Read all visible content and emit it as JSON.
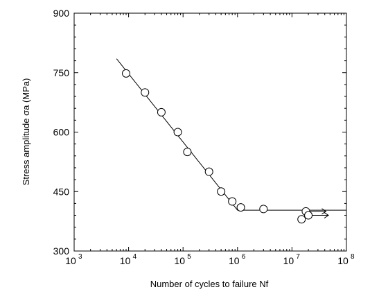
{
  "chart_data": {
    "type": "scatter",
    "title": "",
    "xlabel": "Number of cycles to failure  Nf",
    "ylabel": "Stress amplitude  σa (MPa)",
    "x_scale": "log",
    "xlim": [
      1000,
      100000000
    ],
    "ylim": [
      300,
      900
    ],
    "x_ticks": [
      {
        "value": 1000,
        "base": "10",
        "exp": "3"
      },
      {
        "value": 10000,
        "base": "10",
        "exp": "4"
      },
      {
        "value": 100000,
        "base": "10",
        "exp": "5"
      },
      {
        "value": 1000000,
        "base": "10",
        "exp": "6"
      },
      {
        "value": 10000000,
        "base": "10",
        "exp": "7"
      },
      {
        "value": 100000000,
        "base": "10",
        "exp": "8"
      }
    ],
    "y_ticks": [
      {
        "value": 300,
        "label": "300"
      },
      {
        "value": 450,
        "label": "450"
      },
      {
        "value": 600,
        "label": "600"
      },
      {
        "value": 750,
        "label": "750"
      },
      {
        "value": 900,
        "label": "900"
      }
    ],
    "grid": false,
    "points": [
      {
        "x": 9000,
        "y": 748
      },
      {
        "x": 20000,
        "y": 700
      },
      {
        "x": 40000,
        "y": 650
      },
      {
        "x": 80000,
        "y": 600
      },
      {
        "x": 120000,
        "y": 550
      },
      {
        "x": 300000,
        "y": 500
      },
      {
        "x": 500000,
        "y": 450
      },
      {
        "x": 800000,
        "y": 425
      },
      {
        "x": 1150000,
        "y": 410
      },
      {
        "x": 3000000,
        "y": 406
      },
      {
        "x": 15000000,
        "y": 380
      },
      {
        "x": 18000000,
        "y": 400
      },
      {
        "x": 20000000,
        "y": 390
      }
    ],
    "runouts": [
      {
        "x": 18000000,
        "y": 400
      },
      {
        "x": 20000000,
        "y": 390
      }
    ],
    "fit_line": [
      {
        "x": 6000,
        "y": 785
      },
      {
        "x": 1000000,
        "y": 403
      },
      {
        "x": 100000000,
        "y": 403
      }
    ]
  }
}
